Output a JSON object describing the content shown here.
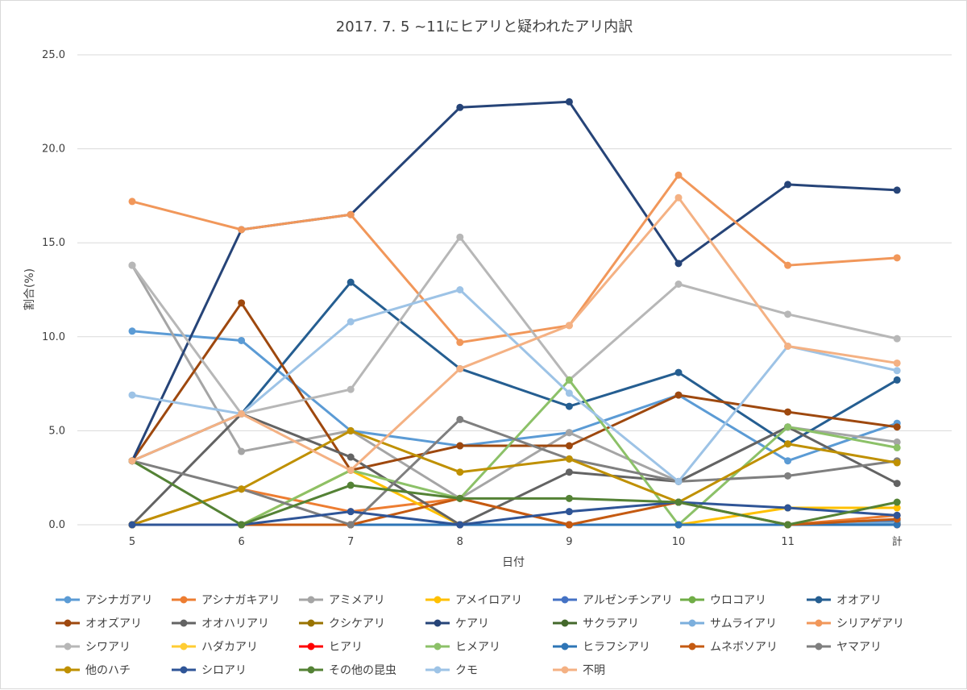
{
  "chart_data": {
    "type": "line",
    "title": "2017. 7. 5 ~11にヒアリと疑われたアリ内訳",
    "xlabel": "日付",
    "ylabel": "割合(%)",
    "categories": [
      "5",
      "6",
      "7",
      "8",
      "9",
      "10",
      "11",
      "計"
    ],
    "ylim": [
      0,
      25
    ],
    "yticks": [
      "0.0",
      "5.0",
      "10.0",
      "15.0",
      "20.0",
      "25.0"
    ],
    "grid": "horizontal",
    "legend_position": "bottom",
    "series": [
      {
        "name": "アシナガアリ",
        "color": "#5b9bd5",
        "values": [
          10.3,
          9.8,
          5.0,
          4.2,
          4.9,
          6.9,
          3.4,
          5.4
        ]
      },
      {
        "name": "アシナガキアリ",
        "color": "#ed7d31",
        "values": [
          0.0,
          1.9,
          0.7,
          1.4,
          0.0,
          0.0,
          0.0,
          0.5
        ]
      },
      {
        "name": "アミメアリ",
        "color": "#a5a5a5",
        "values": [
          13.8,
          3.9,
          5.0,
          1.4,
          4.9,
          2.3,
          5.2,
          4.4
        ]
      },
      {
        "name": "アメイロアリ",
        "color": "#ffc000",
        "values": [
          0.0,
          0.0,
          2.9,
          0.0,
          0.0,
          0.0,
          0.9,
          0.9
        ]
      },
      {
        "name": "アルゼンチンアリ",
        "color": "#4472c4",
        "values": [
          0.0,
          0.0,
          0.0,
          0.0,
          0.0,
          0.0,
          0.0,
          0.2
        ]
      },
      {
        "name": "ウロコアリ",
        "color": "#70ad47",
        "values": [
          0.0,
          0.0,
          0.0,
          0.0,
          0.0,
          0.0,
          0.0,
          0.1
        ]
      },
      {
        "name": "オオアリ",
        "color": "#255e91",
        "values": [
          3.4,
          5.9,
          12.9,
          8.3,
          6.3,
          8.1,
          4.3,
          7.7
        ]
      },
      {
        "name": "オオズアリ",
        "color": "#9e480e",
        "values": [
          3.4,
          11.8,
          2.9,
          4.2,
          4.2,
          6.9,
          6.0,
          5.2
        ]
      },
      {
        "name": "オオハリアリ",
        "color": "#636363",
        "values": [
          0.0,
          5.9,
          3.6,
          0.0,
          2.8,
          2.3,
          5.2,
          2.2
        ]
      },
      {
        "name": "クシケアリ",
        "color": "#997300",
        "values": [
          0.0,
          0.0,
          0.0,
          0.0,
          0.0,
          0.0,
          0.0,
          0.1
        ]
      },
      {
        "name": "ケアリ",
        "color": "#264478",
        "values": [
          3.4,
          15.7,
          16.5,
          22.2,
          22.5,
          13.9,
          18.1,
          17.8
        ]
      },
      {
        "name": "サクラアリ",
        "color": "#43682b",
        "values": [
          0.0,
          0.0,
          0.0,
          0.0,
          0.0,
          0.0,
          0.0,
          0.1
        ]
      },
      {
        "name": "サムライアリ",
        "color": "#7cafdd",
        "values": [
          0.0,
          0.0,
          0.0,
          0.0,
          0.0,
          0.0,
          0.0,
          0.1
        ]
      },
      {
        "name": "シリアゲアリ",
        "color": "#f1975a",
        "values": [
          17.2,
          15.7,
          16.5,
          9.7,
          10.6,
          18.6,
          13.8,
          14.2
        ]
      },
      {
        "name": "シワアリ",
        "color": "#b7b7b7",
        "values": [
          13.8,
          5.9,
          7.2,
          15.3,
          7.7,
          12.8,
          11.2,
          9.9
        ]
      },
      {
        "name": "ハダカアリ",
        "color": "#ffcd33",
        "values": [
          0.0,
          0.0,
          0.0,
          0.0,
          0.0,
          0.0,
          0.0,
          0.0
        ]
      },
      {
        "name": "ヒアリ",
        "color": "#ff0000",
        "label_color": "#ff0000",
        "values": [
          0.0,
          0.0,
          0.0,
          0.0,
          0.0,
          0.0,
          0.0,
          0.0
        ]
      },
      {
        "name": "ヒメアリ",
        "color": "#8cc168",
        "values": [
          0.0,
          0.0,
          2.9,
          1.4,
          7.7,
          0.0,
          5.2,
          4.1
        ]
      },
      {
        "name": "ヒラフシアリ",
        "color": "#2e75b6",
        "values": [
          0.0,
          0.0,
          0.0,
          0.0,
          0.0,
          0.0,
          0.0,
          0.0
        ]
      },
      {
        "name": "ムネボソアリ",
        "color": "#c55a11",
        "values": [
          0.0,
          0.0,
          0.0,
          1.4,
          0.0,
          1.2,
          0.0,
          0.3
        ]
      },
      {
        "name": "ヤマアリ",
        "color": "#7f7f7f",
        "values": [
          3.4,
          1.9,
          0.0,
          5.6,
          3.5,
          2.3,
          2.6,
          3.4
        ]
      },
      {
        "name": "他のハチ",
        "color": "#bf9000",
        "values": [
          0.0,
          1.9,
          5.0,
          2.8,
          3.5,
          1.2,
          4.3,
          3.3
        ]
      },
      {
        "name": "シロアリ",
        "color": "#2f5597",
        "values": [
          0.0,
          0.0,
          0.7,
          0.0,
          0.7,
          1.2,
          0.9,
          0.5
        ]
      },
      {
        "name": "その他の昆虫",
        "color": "#548235",
        "values": [
          3.4,
          0.0,
          2.1,
          1.4,
          1.4,
          1.2,
          0.0,
          1.2
        ]
      },
      {
        "name": "クモ",
        "color": "#9dc3e6",
        "values": [
          6.9,
          5.9,
          10.8,
          12.5,
          7.0,
          2.3,
          9.5,
          8.2
        ]
      },
      {
        "name": "不明",
        "color": "#f4b183",
        "values": [
          3.4,
          5.9,
          2.9,
          8.3,
          10.6,
          17.4,
          9.5,
          8.6
        ]
      }
    ]
  }
}
